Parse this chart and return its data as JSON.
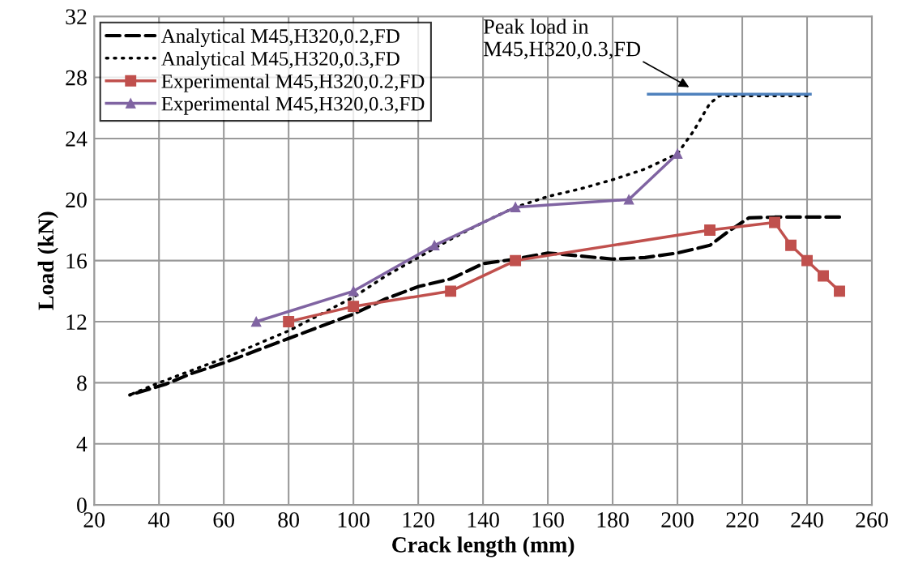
{
  "chart_data": {
    "type": "line",
    "xlabel": "Crack length (mm)",
    "ylabel": "Load (kN)",
    "xlim": [
      20,
      260
    ],
    "xticks": [
      20,
      40,
      60,
      80,
      100,
      120,
      140,
      160,
      180,
      200,
      220,
      240,
      260
    ],
    "ylim": [
      0,
      32
    ],
    "yticks": [
      0,
      4,
      8,
      12,
      16,
      20,
      24,
      28,
      32
    ],
    "grid": true,
    "legend": "top left",
    "annotations": [
      "Peak load in\nM45,H320,0.3,FD"
    ],
    "series": [
      {
        "name": "Analytical M45,H320,0.2,FD",
        "color": "#000000",
        "line_style": "dashed",
        "marker": "none",
        "x": [
          31,
          42,
          50,
          60,
          70,
          80,
          90,
          100,
          110,
          120,
          130,
          140,
          150,
          160,
          170,
          180,
          190,
          200,
          210,
          215,
          222,
          230,
          250
        ],
        "values": [
          7.2,
          7.9,
          8.6,
          9.3,
          10.1,
          10.9,
          11.7,
          12.5,
          13.5,
          14.3,
          14.8,
          15.8,
          16.1,
          16.5,
          16.3,
          16.1,
          16.2,
          16.5,
          17.0,
          17.8,
          18.8,
          18.85,
          18.85
        ]
      },
      {
        "name": "Analytical M45,H320,0.3,FD",
        "color": "#000000",
        "line_style": "dotted",
        "marker": "none",
        "x": [
          31,
          40,
          50,
          60,
          70,
          80,
          90,
          100,
          110,
          120,
          130,
          140,
          150,
          160,
          170,
          180,
          190,
          200,
          205,
          210,
          213,
          240
        ],
        "values": [
          7.2,
          8.0,
          8.8,
          9.6,
          10.5,
          11.4,
          12.5,
          13.6,
          15.0,
          16.2,
          17.4,
          18.5,
          19.5,
          20.2,
          20.7,
          21.3,
          22.0,
          23.0,
          24.5,
          26.3,
          26.8,
          26.8
        ]
      },
      {
        "name": "Experimental M45,H320,0.2,FD",
        "color": "#c0504d",
        "line_style": "solid",
        "marker": "square",
        "x": [
          80,
          100,
          130,
          150,
          210,
          230,
          235,
          240,
          245,
          250
        ],
        "values": [
          12,
          13,
          14,
          16,
          18,
          18.5,
          17,
          16,
          15,
          14
        ]
      },
      {
        "name": "Experimental M45,H320,0.3,FD",
        "color": "#8064a2",
        "line_style": "solid",
        "marker": "triangle",
        "x": [
          70,
          100,
          125,
          150,
          185,
          200
        ],
        "values": [
          12,
          14,
          17,
          19.5,
          20,
          23
        ]
      },
      {
        "color": "#4f81bd",
        "line_style": "solid",
        "marker": "none",
        "x": [
          191,
          241
        ],
        "values": [
          26.9,
          26.9
        ]
      }
    ]
  }
}
